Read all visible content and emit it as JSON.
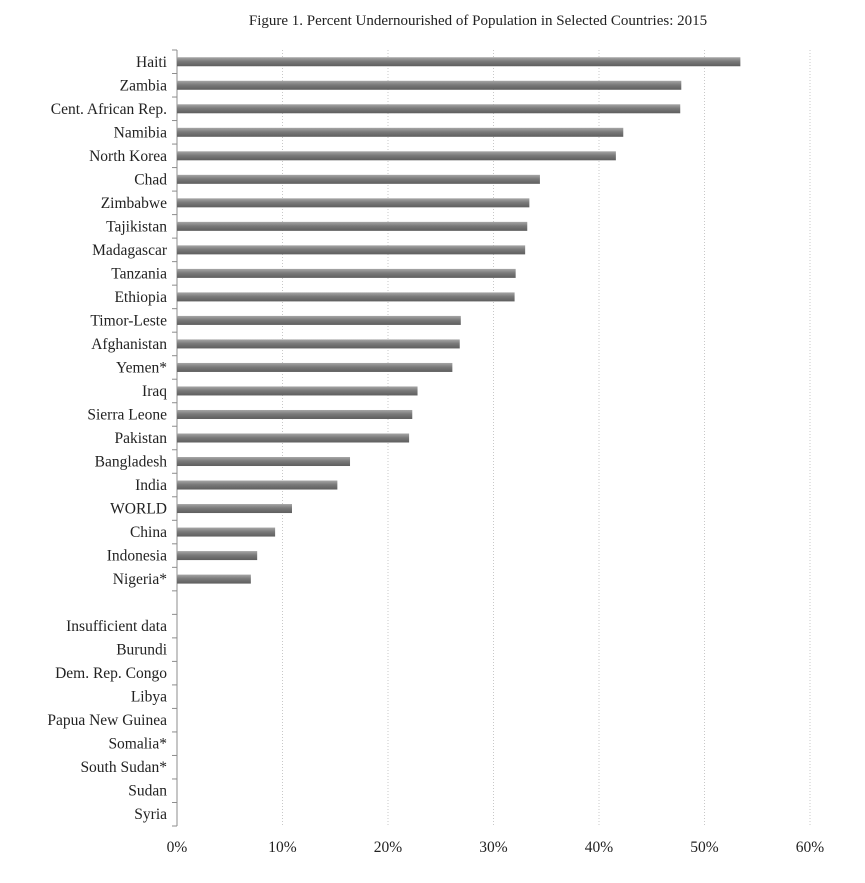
{
  "chart_data": {
    "type": "bar",
    "orientation": "horizontal",
    "title": "Figure 1. Percent Undernourished of Population in Selected Countries: 2015",
    "xlabel": "",
    "ylabel": "",
    "xlim": [
      0,
      60
    ],
    "x_ticks": [
      0,
      10,
      20,
      30,
      40,
      50,
      60
    ],
    "x_tick_labels": [
      "0%",
      "10%",
      "20%",
      "30%",
      "40%",
      "50%",
      "60%"
    ],
    "grid": "vertical dotted",
    "legend": "none",
    "bar_color": "#7f7f7f",
    "categories": [
      "Haiti",
      "Zambia",
      "Cent. African Rep.",
      "Namibia",
      "North Korea",
      "Chad",
      "Zimbabwe",
      "Tajikistan",
      "Madagascar",
      "Tanzania",
      "Ethiopia",
      "Timor-Leste",
      "Afghanistan",
      "Yemen*",
      "Iraq",
      "Sierra Leone",
      "Pakistan",
      "Bangladesh",
      "India",
      "WORLD",
      "China",
      "Indonesia",
      "Nigeria*",
      "",
      "Insufficient data",
      "Burundi",
      "Dem. Rep. Congo",
      "Libya",
      "Papua New Guinea",
      "Somalia*",
      "South Sudan*",
      "Sudan",
      "Syria"
    ],
    "values": [
      53.4,
      47.8,
      47.7,
      42.3,
      41.6,
      34.4,
      33.4,
      33.2,
      33.0,
      32.1,
      32.0,
      26.9,
      26.8,
      26.1,
      22.8,
      22.3,
      22.0,
      16.4,
      15.2,
      10.9,
      9.3,
      7.6,
      7.0,
      null,
      null,
      null,
      null,
      null,
      null,
      null,
      null,
      null,
      null
    ]
  }
}
